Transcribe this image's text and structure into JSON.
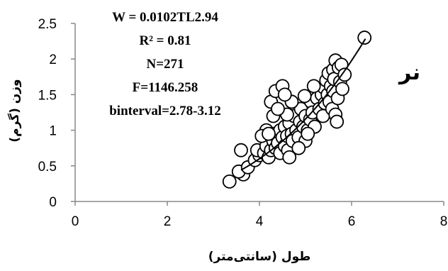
{
  "chart_data": {
    "type": "scatter",
    "xlabel": "طول (سانتی‌متر)",
    "ylabel": "وزن (گرم)",
    "xlim": [
      0,
      8
    ],
    "ylim": [
      0,
      2.5
    ],
    "xticks": [
      "0",
      "2",
      "4",
      "6",
      "8"
    ],
    "yticks": [
      "0",
      "0.5",
      "1",
      "1.5",
      "2",
      "2.5"
    ],
    "grid": false,
    "legend": "none",
    "series_label": "نر",
    "annotation_lines": [
      "W = 0.0102TL2.94",
      "R² = 0.81",
      "N=271",
      "F=1146.258",
      "binterval=2.78-3.12"
    ],
    "trendline": {
      "type": "power",
      "a": 0.0102,
      "b": 2.94,
      "x_range": [
        3.6,
        6.3
      ]
    },
    "marker": {
      "shape": "circle",
      "fill": "#ffffff",
      "stroke": "#000000"
    },
    "points": [
      [
        3.35,
        0.28
      ],
      [
        3.65,
        0.38
      ],
      [
        3.55,
        0.42
      ],
      [
        3.75,
        0.48
      ],
      [
        3.6,
        0.72
      ],
      [
        3.9,
        0.58
      ],
      [
        4.0,
        0.65
      ],
      [
        3.95,
        0.72
      ],
      [
        4.1,
        0.68
      ],
      [
        4.15,
        0.78
      ],
      [
        4.2,
        0.62
      ],
      [
        4.25,
        0.72
      ],
      [
        4.3,
        0.85
      ],
      [
        4.3,
        0.95
      ],
      [
        4.35,
        0.75
      ],
      [
        4.4,
        0.82
      ],
      [
        4.45,
        0.68
      ],
      [
        4.45,
        1.0
      ],
      [
        4.5,
        0.9
      ],
      [
        4.55,
        0.78
      ],
      [
        4.55,
        1.05
      ],
      [
        4.6,
        0.92
      ],
      [
        4.62,
        0.72
      ],
      [
        4.65,
        1.1
      ],
      [
        4.7,
        0.95
      ],
      [
        4.72,
        0.85
      ],
      [
        4.75,
        1.2
      ],
      [
        4.8,
        1.0
      ],
      [
        4.85,
        0.9
      ],
      [
        4.88,
        1.12
      ],
      [
        4.9,
        1.3
      ],
      [
        4.95,
        1.05
      ],
      [
        5.0,
        0.85
      ],
      [
        5.0,
        1.2
      ],
      [
        5.05,
        1.0
      ],
      [
        5.1,
        1.15
      ],
      [
        5.12,
        1.4
      ],
      [
        5.15,
        1.25
      ],
      [
        5.2,
        1.05
      ],
      [
        5.25,
        1.45
      ],
      [
        5.3,
        1.3
      ],
      [
        5.35,
        1.5
      ],
      [
        5.38,
        1.2
      ],
      [
        5.4,
        1.6
      ],
      [
        5.42,
        1.38
      ],
      [
        5.45,
        1.7
      ],
      [
        5.48,
        1.5
      ],
      [
        5.5,
        1.8
      ],
      [
        5.52,
        1.4
      ],
      [
        5.55,
        1.62
      ],
      [
        5.58,
        1.3
      ],
      [
        5.6,
        1.85
      ],
      [
        5.6,
        1.55
      ],
      [
        5.62,
        1.72
      ],
      [
        5.65,
        1.98
      ],
      [
        5.65,
        1.22
      ],
      [
        5.68,
        1.12
      ],
      [
        5.7,
        1.45
      ],
      [
        5.72,
        1.88
      ],
      [
        5.75,
        1.68
      ],
      [
        5.78,
        1.92
      ],
      [
        5.8,
        1.58
      ],
      [
        5.85,
        1.78
      ],
      [
        4.25,
        1.4
      ],
      [
        4.35,
        1.55
      ],
      [
        4.5,
        1.62
      ],
      [
        4.6,
        1.22
      ],
      [
        4.3,
        1.2
      ],
      [
        4.15,
        1.0
      ],
      [
        4.4,
        1.3
      ],
      [
        4.7,
        1.4
      ],
      [
        4.55,
        1.5
      ],
      [
        6.28,
        2.3
      ],
      [
        4.05,
        0.92
      ],
      [
        4.2,
        0.95
      ],
      [
        4.65,
        0.62
      ],
      [
        4.85,
        0.75
      ],
      [
        5.05,
        0.95
      ],
      [
        4.98,
        1.48
      ],
      [
        5.18,
        1.62
      ]
    ]
  }
}
